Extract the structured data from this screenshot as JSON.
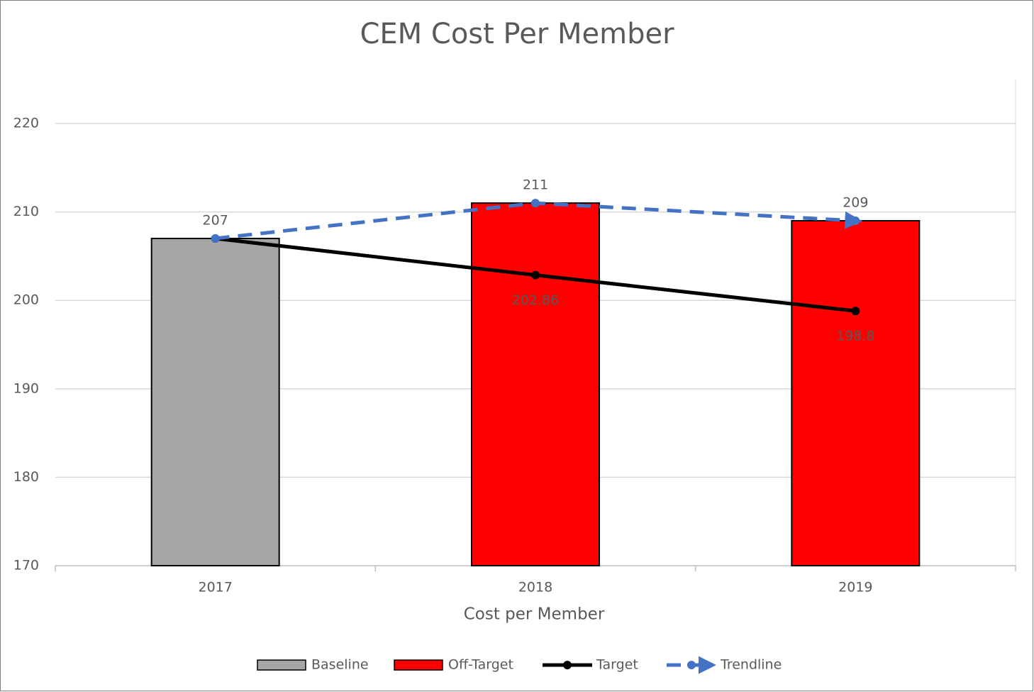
{
  "chart_data": {
    "type": "bar",
    "title": "CEM Cost Per Member",
    "x_label": "Cost per Member",
    "categories": [
      "2017",
      "2018",
      "2019"
    ],
    "ylim": [
      170,
      220
    ],
    "yticks": [
      170,
      180,
      190,
      200,
      210,
      220
    ],
    "grid": true,
    "legend": "bottom",
    "series": [
      {
        "name": "Baseline",
        "type": "bar",
        "color": "#a6a6a6",
        "values": [
          207,
          null,
          null
        ]
      },
      {
        "name": "Off-Target",
        "type": "bar",
        "color": "#ff0000",
        "values": [
          null,
          211,
          209
        ]
      },
      {
        "name": "Target",
        "type": "line",
        "color": "#000000",
        "values": [
          207,
          202.86,
          198.8
        ],
        "value_labels": [
          null,
          "202.86",
          "198.8"
        ]
      },
      {
        "name": "Trendline",
        "type": "line",
        "color": "#4472c4",
        "dashed": true,
        "values": [
          207,
          211,
          209
        ]
      }
    ]
  }
}
